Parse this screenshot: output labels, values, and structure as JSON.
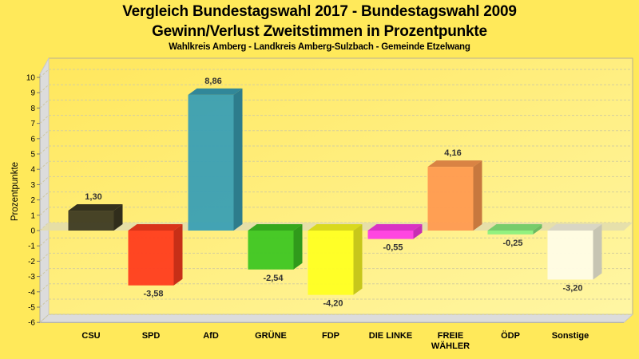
{
  "chart_data": {
    "type": "bar",
    "title": "Vergleich Bundestagswahl 2017 - Bundestagswahl 2009",
    "subtitle": "Gewinn/Verlust Zweitstimmen in Prozentpunkte",
    "caption": "Wahlkreis Amberg - Landkreis Amberg-Sulzbach - Gemeinde Etzelwang",
    "xlabel": "",
    "ylabel": "Prozentpunkte",
    "ylim": [
      -6,
      10
    ],
    "yticks": [
      "10",
      "9",
      "8",
      "7",
      "6",
      "5",
      "4",
      "3",
      "2",
      "1",
      "0",
      "-1",
      "-2",
      "-3",
      "-4",
      "-5",
      "-6"
    ],
    "ytick_values": [
      10,
      9,
      8,
      7,
      6,
      5,
      4,
      3,
      2,
      1,
      0,
      -1,
      -2,
      -3,
      -4,
      -5,
      -6
    ],
    "grid": true,
    "three_d": true,
    "categories": [
      "CSU",
      "SPD",
      "AfD",
      "GRÜNE",
      "FDP",
      "DIE LINKE",
      "FREIE WÄHLER",
      "ÖDP",
      "Sonstige"
    ],
    "category_lines": [
      [
        "CSU"
      ],
      [
        "SPD"
      ],
      [
        "AfD"
      ],
      [
        "GRÜNE"
      ],
      [
        "FDP"
      ],
      [
        "DIE LINKE"
      ],
      [
        "FREIE",
        "WÄHLER"
      ],
      [
        "ÖDP"
      ],
      [
        "Sonstige"
      ]
    ],
    "values": [
      1.3,
      -3.58,
      8.86,
      -2.54,
      -4.2,
      -0.55,
      4.16,
      -0.25,
      -3.2
    ],
    "value_labels": [
      "1,30",
      "-3,58",
      "8,86",
      "-2,54",
      "-4,20",
      "-0,55",
      "4,16",
      "-0,25",
      "-3,20"
    ],
    "colors": [
      "#3d3a22",
      "#ff3c1e",
      "#3a9fb4",
      "#3ec622",
      "#ffff22",
      "#ff3ce6",
      "#ff9a50",
      "#8cf07e",
      "#fffce6"
    ]
  },
  "theme": {
    "background": "#ffe95a",
    "plot_background_top": "#ffe75c",
    "plot_background_bottom": "#fff59a",
    "wall_color": "#dcdcdc",
    "grid_color": "#d8d0a0"
  }
}
